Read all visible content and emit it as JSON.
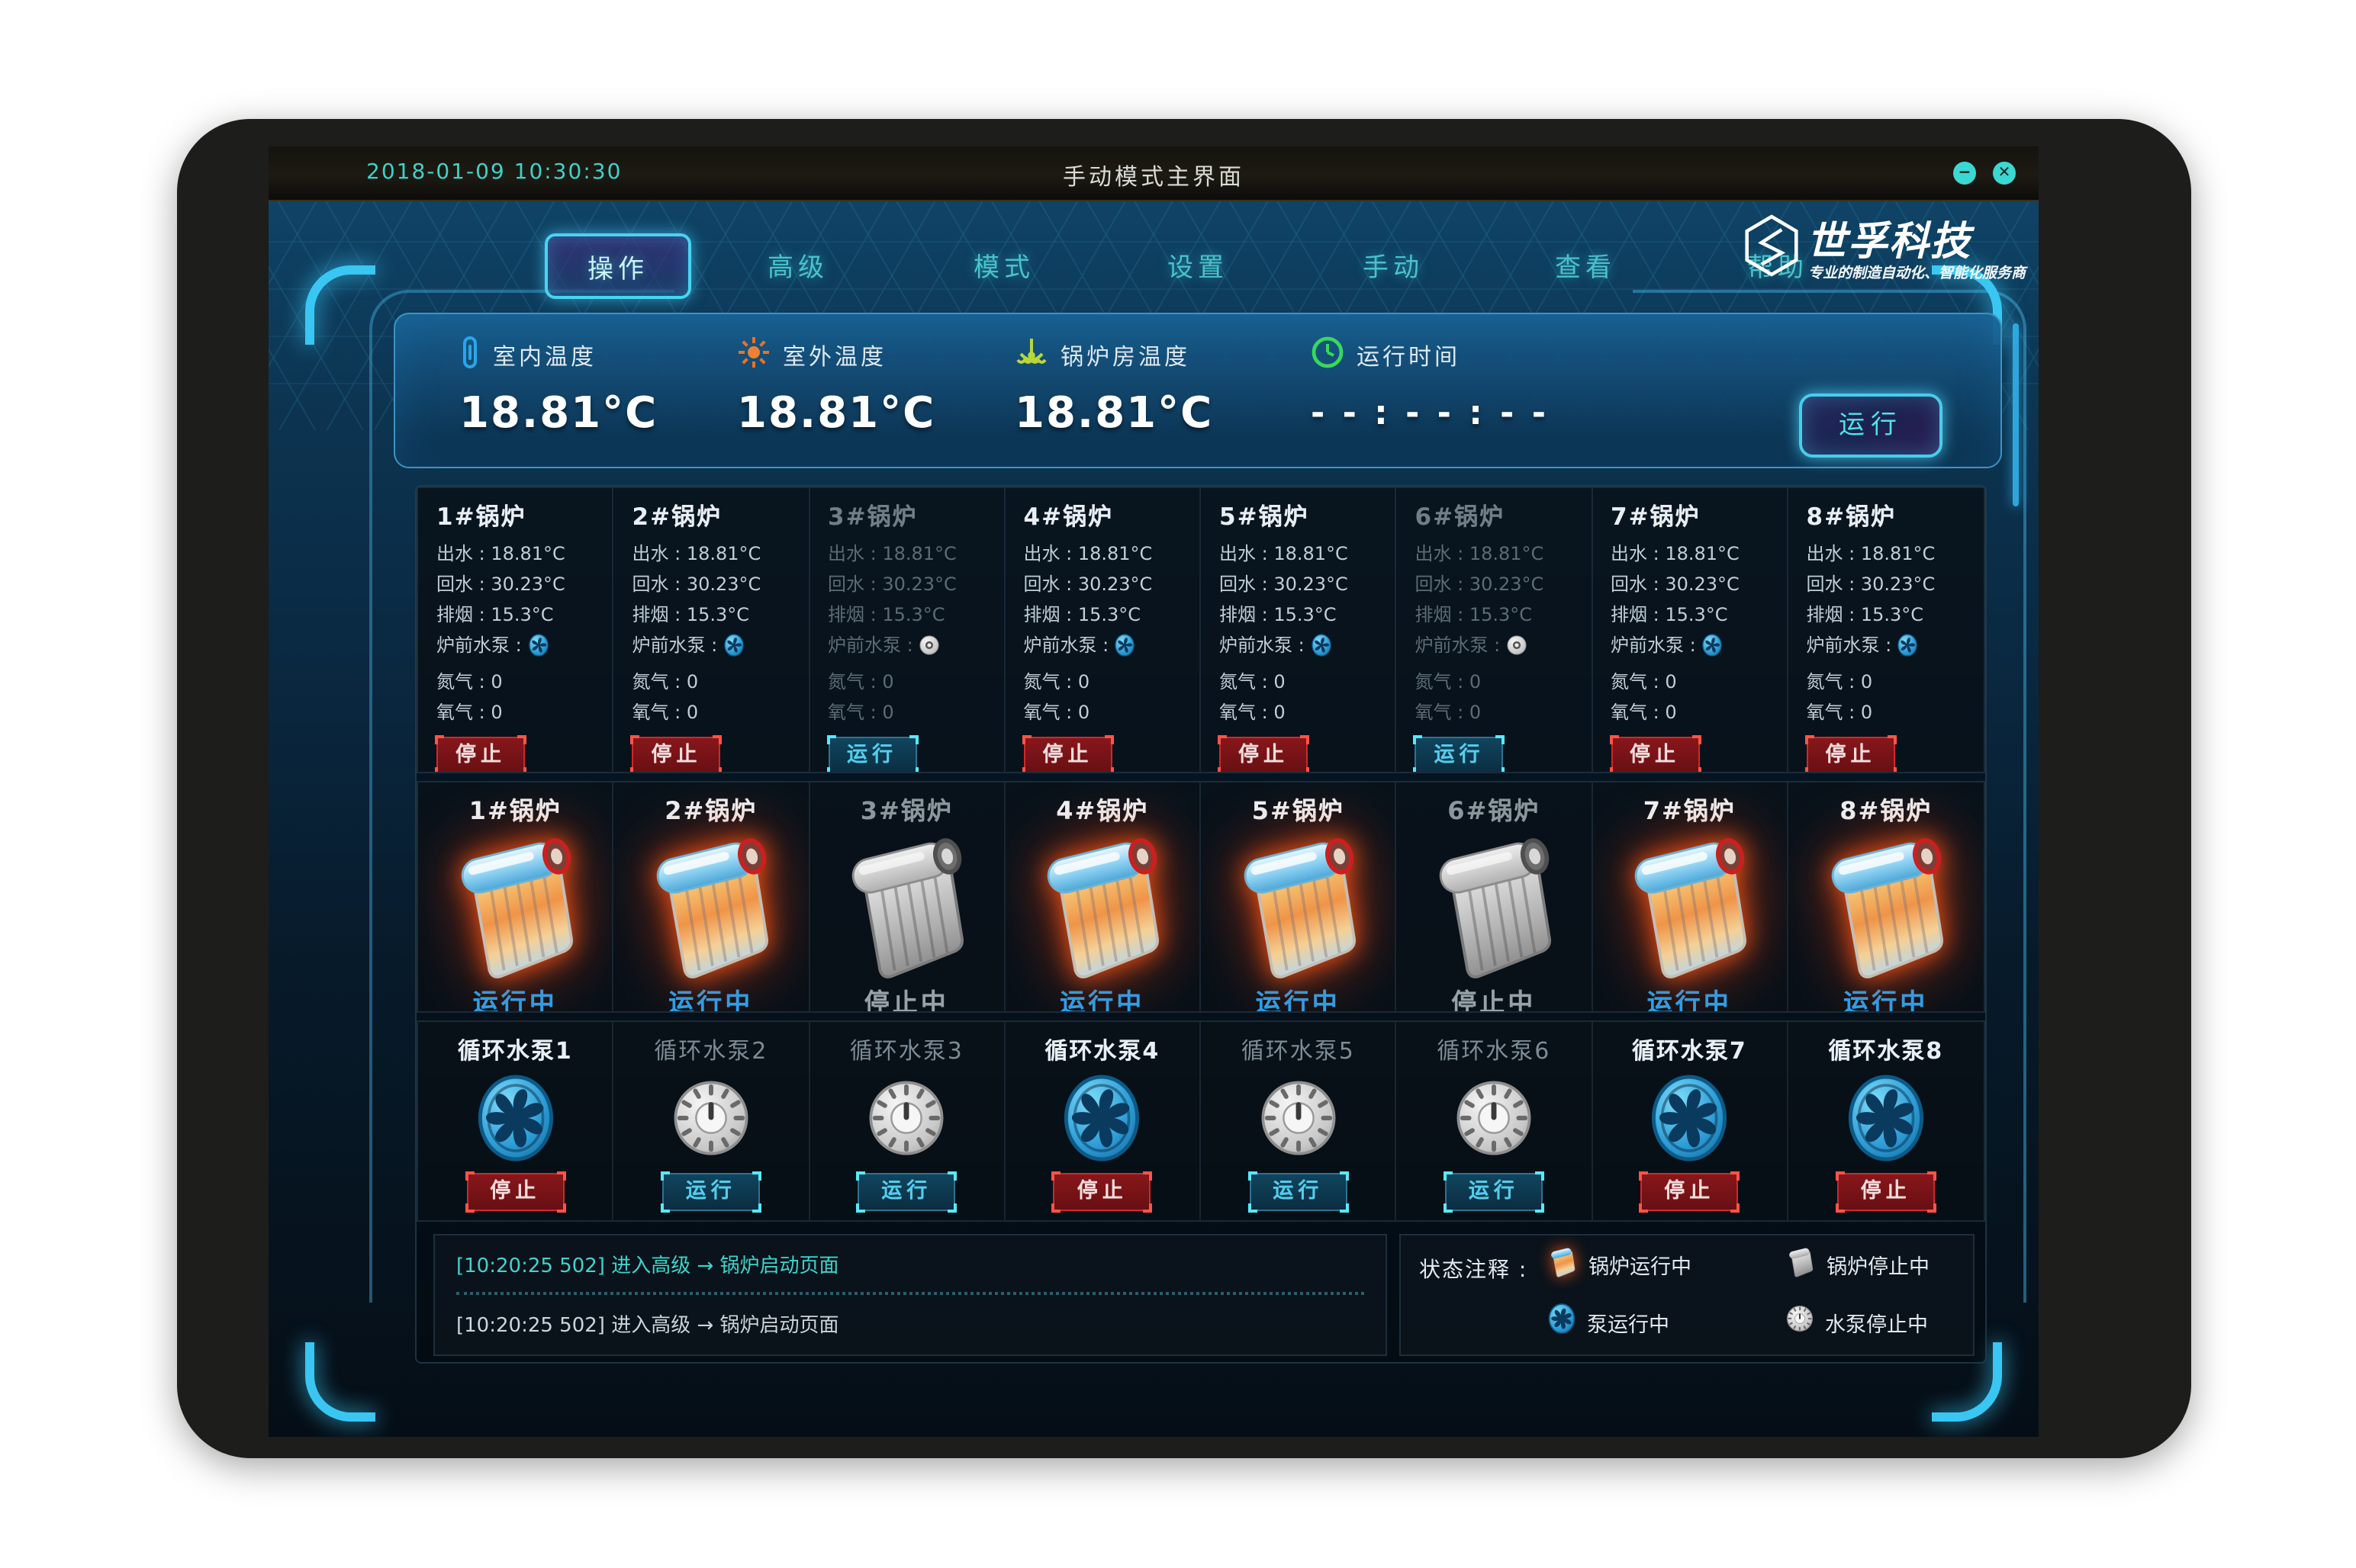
{
  "window": {
    "datetime": "2018-01-09  10:30:30",
    "title": "手动模式主界面"
  },
  "brand": {
    "name": "世孚科技",
    "tagline": "专业的制造自动化、智能化服务商"
  },
  "nav": {
    "tabs": [
      {
        "label": "操作",
        "active": true
      },
      {
        "label": "高级",
        "active": false
      },
      {
        "label": "模式",
        "active": false
      },
      {
        "label": "设置",
        "active": false
      },
      {
        "label": "手动",
        "active": false
      },
      {
        "label": "查看",
        "active": false
      },
      {
        "label": "帮助",
        "active": false
      }
    ]
  },
  "metrics": {
    "items": [
      {
        "icon": "thermometer-icon",
        "label": "室内温度",
        "value": "18.81°C"
      },
      {
        "icon": "sun-icon",
        "label": "室外温度",
        "value": "18.81°C"
      },
      {
        "icon": "boiler-room-temp-icon",
        "label": "锅炉房温度",
        "value": "18.81°C"
      },
      {
        "icon": "clock-icon",
        "label": "运行时间",
        "value": "- - : - - : - -"
      }
    ],
    "run_button": "运行"
  },
  "boiler_cards": [
    {
      "title": "1#锅炉",
      "running": true,
      "rows": [
        "出水 : 18.81°C",
        "回水 : 30.23°C",
        "排烟 : 15.3°C"
      ],
      "pump_label": "炉前水泵 : ",
      "gas_rows": [
        "氮气 : 0",
        "氧气 : 0"
      ],
      "button": "停止"
    },
    {
      "title": "2#锅炉",
      "running": true,
      "rows": [
        "出水 : 18.81°C",
        "回水 : 30.23°C",
        "排烟 : 15.3°C"
      ],
      "pump_label": "炉前水泵 : ",
      "gas_rows": [
        "氮气 : 0",
        "氧气 : 0"
      ],
      "button": "停止"
    },
    {
      "title": "3#锅炉",
      "running": false,
      "rows": [
        "出水 : 18.81°C",
        "回水 : 30.23°C",
        "排烟 : 15.3°C"
      ],
      "pump_label": "炉前水泵 : ",
      "gas_rows": [
        "氮气 : 0",
        "氧气 : 0"
      ],
      "button": "运行"
    },
    {
      "title": "4#锅炉",
      "running": true,
      "rows": [
        "出水 : 18.81°C",
        "回水 : 30.23°C",
        "排烟 : 15.3°C"
      ],
      "pump_label": "炉前水泵 : ",
      "gas_rows": [
        "氮气 : 0",
        "氧气 : 0"
      ],
      "button": "停止"
    },
    {
      "title": "5#锅炉",
      "running": true,
      "rows": [
        "出水 : 18.81°C",
        "回水 : 30.23°C",
        "排烟 : 15.3°C"
      ],
      "pump_label": "炉前水泵 : ",
      "gas_rows": [
        "氮气 : 0",
        "氧气 : 0"
      ],
      "button": "停止"
    },
    {
      "title": "6#锅炉",
      "running": false,
      "rows": [
        "出水 : 18.81°C",
        "回水 : 30.23°C",
        "排烟 : 15.3°C"
      ],
      "pump_label": "炉前水泵 : ",
      "gas_rows": [
        "氮气 : 0",
        "氧气 : 0"
      ],
      "button": "运行"
    },
    {
      "title": "7#锅炉",
      "running": true,
      "rows": [
        "出水 : 18.81°C",
        "回水 : 30.23°C",
        "排烟 : 15.3°C"
      ],
      "pump_label": "炉前水泵 : ",
      "gas_rows": [
        "氮气 : 0",
        "氧气 : 0"
      ],
      "button": "停止"
    },
    {
      "title": "8#锅炉",
      "running": true,
      "rows": [
        "出水 : 18.81°C",
        "回水 : 30.23°C",
        "排烟 : 15.3°C"
      ],
      "pump_label": "炉前水泵 : ",
      "gas_rows": [
        "氮气 : 0",
        "氧气 : 0"
      ],
      "button": "停止"
    }
  ],
  "boiler_status": [
    {
      "title": "1#锅炉",
      "status": "运行中",
      "running": true
    },
    {
      "title": "2#锅炉",
      "status": "运行中",
      "running": true
    },
    {
      "title": "3#锅炉",
      "status": "停止中",
      "running": false
    },
    {
      "title": "4#锅炉",
      "status": "运行中",
      "running": true
    },
    {
      "title": "5#锅炉",
      "status": "运行中",
      "running": true
    },
    {
      "title": "6#锅炉",
      "status": "停止中",
      "running": false
    },
    {
      "title": "7#锅炉",
      "status": "运行中",
      "running": true
    },
    {
      "title": "8#锅炉",
      "status": "运行中",
      "running": true
    }
  ],
  "pumps": [
    {
      "title": "循环水泵1",
      "running": true,
      "button": "停止"
    },
    {
      "title": "循环水泵2",
      "running": false,
      "button": "运行"
    },
    {
      "title": "循环水泵3",
      "running": false,
      "button": "运行"
    },
    {
      "title": "循环水泵4",
      "running": true,
      "button": "停止"
    },
    {
      "title": "循环水泵5",
      "running": false,
      "button": "运行"
    },
    {
      "title": "循环水泵6",
      "running": false,
      "button": "运行"
    },
    {
      "title": "循环水泵7",
      "running": true,
      "button": "停止"
    },
    {
      "title": "循环水泵8",
      "running": true,
      "button": "停止"
    }
  ],
  "log": {
    "lines": [
      "[10:20:25  502]  进入高级 → 锅炉启动页面",
      "[10:20:25  502]  进入高级 → 锅炉启动页面"
    ]
  },
  "legend": {
    "title": "状态注释 : ",
    "items": [
      {
        "icon": "boiler-running-icon",
        "label": "锅炉运行中"
      },
      {
        "icon": "boiler-stopped-icon",
        "label": "锅炉停止中"
      },
      {
        "icon": "pump-running-icon",
        "label": "泵运行中"
      },
      {
        "icon": "pump-stopped-icon",
        "label": "水泵停止中"
      }
    ]
  },
  "window_controls": {
    "minimize": "−",
    "close": "✕"
  },
  "colors": {
    "accent_cyan": "#49ccec",
    "running_blue": "#23a4f2",
    "stop_red": "#d2262a",
    "log_cyan": "#3fd4cc"
  }
}
